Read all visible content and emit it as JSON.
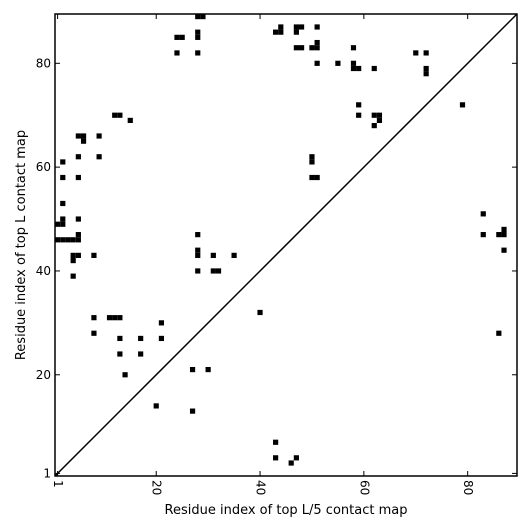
{
  "chart_data": {
    "type": "scatter",
    "xlabel": "Residue index of top L/5 contact map",
    "ylabel": "Residue index of top L contact map",
    "xlim": [
      0.5,
      89.5
    ],
    "ylim": [
      0.5,
      89.5
    ],
    "xticks": [
      1,
      20,
      40,
      60,
      80
    ],
    "yticks": [
      1,
      20,
      40,
      60,
      80
    ],
    "diagonal": true,
    "grid": false,
    "legend": "none",
    "marker_color": "#000000",
    "points": [
      [
        1,
        46
      ],
      [
        1,
        49
      ],
      [
        2,
        46
      ],
      [
        2,
        49
      ],
      [
        2,
        50
      ],
      [
        2,
        53
      ],
      [
        2,
        58
      ],
      [
        2,
        61
      ],
      [
        3,
        46
      ],
      [
        4,
        39
      ],
      [
        4,
        42
      ],
      [
        4,
        43
      ],
      [
        4,
        46
      ],
      [
        5,
        43
      ],
      [
        5,
        46
      ],
      [
        5,
        47
      ],
      [
        5,
        50
      ],
      [
        5,
        58
      ],
      [
        5,
        62
      ],
      [
        5,
        66
      ],
      [
        6,
        65
      ],
      [
        6,
        66
      ],
      [
        8,
        28
      ],
      [
        8,
        31
      ],
      [
        8,
        43
      ],
      [
        9,
        62
      ],
      [
        9,
        66
      ],
      [
        11,
        31
      ],
      [
        12,
        31
      ],
      [
        12,
        70
      ],
      [
        13,
        24
      ],
      [
        13,
        27
      ],
      [
        13,
        31
      ],
      [
        13,
        70
      ],
      [
        14,
        20
      ],
      [
        15,
        69
      ],
      [
        17,
        24
      ],
      [
        17,
        27
      ],
      [
        20,
        14
      ],
      [
        21,
        27
      ],
      [
        21,
        30
      ],
      [
        24,
        82
      ],
      [
        24,
        85
      ],
      [
        25,
        85
      ],
      [
        27,
        13
      ],
      [
        27,
        21
      ],
      [
        28,
        40
      ],
      [
        28,
        43
      ],
      [
        28,
        44
      ],
      [
        28,
        47
      ],
      [
        28,
        82
      ],
      [
        28,
        85
      ],
      [
        28,
        86
      ],
      [
        28,
        89
      ],
      [
        29,
        89
      ],
      [
        30,
        21
      ],
      [
        31,
        40
      ],
      [
        31,
        43
      ],
      [
        32,
        40
      ],
      [
        35,
        43
      ],
      [
        40,
        32
      ],
      [
        43,
        4
      ],
      [
        43,
        7
      ],
      [
        43,
        86
      ],
      [
        44,
        86
      ],
      [
        44,
        87
      ],
      [
        46,
        3
      ],
      [
        47,
        4
      ],
      [
        47,
        83
      ],
      [
        47,
        86
      ],
      [
        47,
        87
      ],
      [
        48,
        83
      ],
      [
        48,
        87
      ],
      [
        50,
        58
      ],
      [
        50,
        61
      ],
      [
        50,
        62
      ],
      [
        50,
        83
      ],
      [
        51,
        58
      ],
      [
        51,
        80
      ],
      [
        51,
        83
      ],
      [
        51,
        84
      ],
      [
        51,
        87
      ],
      [
        55,
        80
      ],
      [
        58,
        79
      ],
      [
        58,
        80
      ],
      [
        58,
        83
      ],
      [
        59,
        70
      ],
      [
        59,
        72
      ],
      [
        59,
        79
      ],
      [
        62,
        68
      ],
      [
        62,
        70
      ],
      [
        62,
        79
      ],
      [
        63,
        69
      ],
      [
        63,
        70
      ],
      [
        70,
        82
      ],
      [
        72,
        78
      ],
      [
        72,
        79
      ],
      [
        72,
        82
      ],
      [
        79,
        72
      ],
      [
        83,
        47
      ],
      [
        83,
        51
      ],
      [
        86,
        28
      ],
      [
        86,
        47
      ],
      [
        87,
        44
      ],
      [
        87,
        47
      ],
      [
        87,
        48
      ]
    ]
  }
}
